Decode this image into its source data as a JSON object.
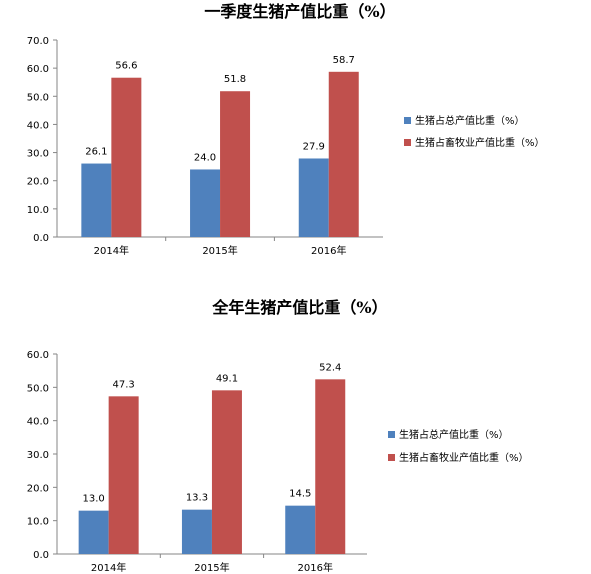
{
  "chart_data": [
    {
      "type": "bar",
      "title": "一季度生猪产值比重（%）",
      "categories": [
        "2014年",
        "2015年",
        "2016年"
      ],
      "series": [
        {
          "name": "生猪占总产值比重（%）",
          "values": [
            26.1,
            24.0,
            27.9
          ],
          "color": "#4F81BD"
        },
        {
          "name": "生猪占畜牧业产值比重（%）",
          "values": [
            56.6,
            51.8,
            58.7
          ],
          "color": "#C0504D"
        }
      ],
      "ylim": [
        0,
        70
      ],
      "yticks": [
        "0.0",
        "10.0",
        "20.0",
        "30.0",
        "40.0",
        "50.0",
        "60.0",
        "70.0"
      ],
      "legend_position": "right",
      "grid": false
    },
    {
      "type": "bar",
      "title": "全年生猪产值比重（%）",
      "categories": [
        "2014年",
        "2015年",
        "2016年"
      ],
      "series": [
        {
          "name": "生猪占总产值比重（%）",
          "values": [
            13.0,
            13.3,
            14.5
          ],
          "color": "#4F81BD"
        },
        {
          "name": "生猪占畜牧业产值比重（%）",
          "values": [
            47.3,
            49.1,
            52.4
          ],
          "color": "#C0504D"
        }
      ],
      "ylim": [
        0,
        60
      ],
      "yticks": [
        "0.0",
        "10.0",
        "20.0",
        "30.0",
        "40.0",
        "50.0",
        "60.0"
      ],
      "legend_position": "right",
      "grid": false
    }
  ]
}
